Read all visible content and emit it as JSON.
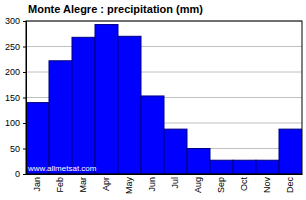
{
  "chart_data": {
    "type": "bar",
    "title": "Monte Alegre : precipitation (mm)",
    "categories": [
      "Jan",
      "Feb",
      "Mar",
      "Apr",
      "May",
      "Jun",
      "Jul",
      "Aug",
      "Sep",
      "Oct",
      "Nov",
      "Dec"
    ],
    "values": [
      140,
      222,
      268,
      293,
      270,
      153,
      88,
      50,
      27,
      27,
      27,
      88
    ],
    "color": "#0000ff",
    "ylim": [
      0,
      300
    ],
    "yticks": [
      0,
      50,
      100,
      150,
      200,
      250,
      300
    ],
    "grid": true,
    "annotations": [
      "www.allmetsat.com"
    ]
  }
}
